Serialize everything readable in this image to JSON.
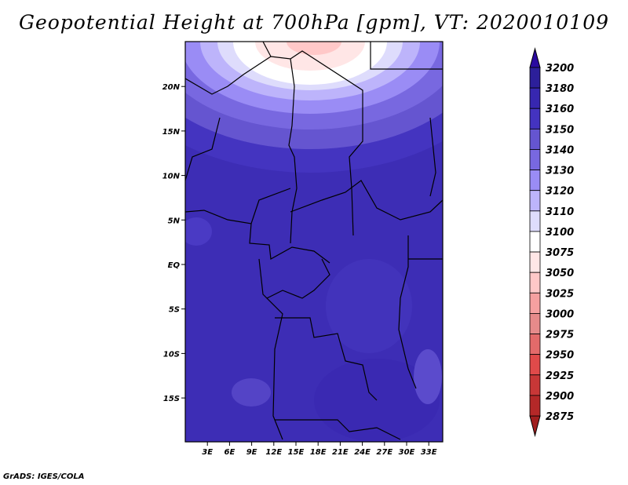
{
  "title": "Geopotential Height at 700hPa [gpm], VT: 2020010109",
  "credit": "GrADS: IGES/COLA",
  "map": {
    "lat_ticks": [
      {
        "v": 20,
        "label": "20N"
      },
      {
        "v": 15,
        "label": "15N"
      },
      {
        "v": 10,
        "label": "10N"
      },
      {
        "v": 5,
        "label": "5N"
      },
      {
        "v": 0,
        "label": "EQ"
      },
      {
        "v": -5,
        "label": "5S"
      },
      {
        "v": -10,
        "label": "10S"
      },
      {
        "v": -15,
        "label": "15S"
      }
    ],
    "lon_ticks": [
      {
        "v": 3,
        "label": "3E"
      },
      {
        "v": 6,
        "label": "6E"
      },
      {
        "v": 9,
        "label": "9E"
      },
      {
        "v": 12,
        "label": "12E"
      },
      {
        "v": 15,
        "label": "15E"
      },
      {
        "v": 18,
        "label": "18E"
      },
      {
        "v": 21,
        "label": "21E"
      },
      {
        "v": 24,
        "label": "24E"
      },
      {
        "v": 27,
        "label": "27E"
      },
      {
        "v": 30,
        "label": "30E"
      },
      {
        "v": 33,
        "label": "33E"
      }
    ],
    "background_color": "#3d2db5"
  },
  "colorbar": {
    "labels": [
      "3200",
      "3180",
      "3160",
      "3150",
      "3140",
      "3130",
      "3120",
      "3110",
      "3100",
      "3075",
      "3050",
      "3025",
      "3000",
      "2975",
      "2950",
      "2925",
      "2900",
      "2875"
    ],
    "colors": [
      "#2c1f9a",
      "#3727b0",
      "#4433c0",
      "#6555d0",
      "#7868e0",
      "#9a8cf5",
      "#bdb4fb",
      "#dedcfc",
      "#ffffff",
      "#ffe6e6",
      "#ffc8c8",
      "#f5a0a0",
      "#e68a8a",
      "#e36a6a",
      "#e04a4a",
      "#c83737",
      "#b42828"
    ],
    "top_arrow_color": "#2a0aa0",
    "bottom_arrow_color": "#a01e1e"
  }
}
